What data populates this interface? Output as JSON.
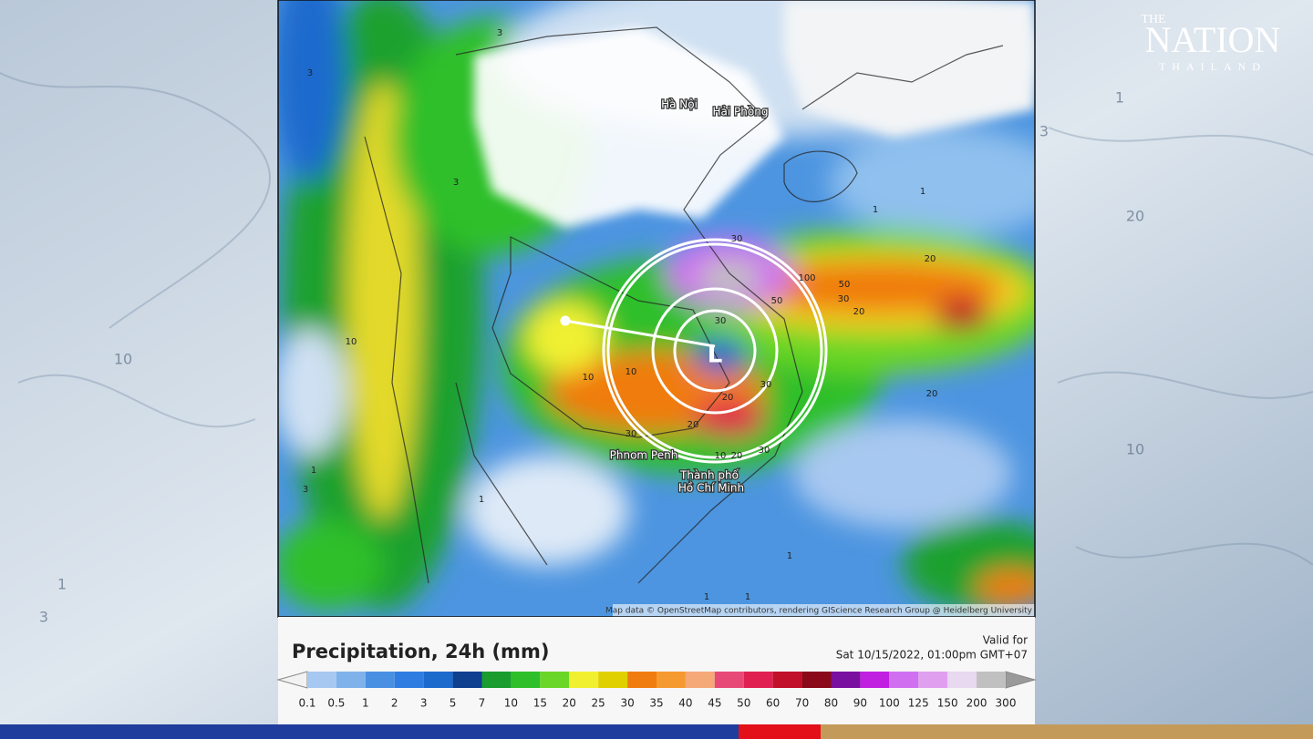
{
  "logo": {
    "top": "THE",
    "name": "NATION",
    "sub": "THAILAND"
  },
  "map": {
    "places": [
      "Hà Nội",
      "Hải Phòng",
      "Phnom Penh",
      "Thành phố",
      "Hồ Chí Minh"
    ],
    "low_marker": "L",
    "contour_labels": [
      "3",
      "3",
      "1",
      "1",
      "20",
      "30",
      "50",
      "30",
      "20",
      "100",
      "50",
      "30",
      "20",
      "10",
      "30",
      "30",
      "20",
      "20",
      "30",
      "20",
      "10",
      "10",
      "1",
      "1",
      "3",
      "1",
      "10",
      "1",
      "1",
      "3"
    ],
    "attribution": "Map data © OpenStreetMap contributors, rendering GIScience Research Group @ Heidelberg University"
  },
  "legend": {
    "title": "Precipitation, 24h (mm)",
    "valid_label": "Valid for",
    "valid_time": "Sat 10/15/2022, 01:00pm GMT+07",
    "labels": [
      "0.1",
      "0.5",
      "1",
      "2",
      "3",
      "5",
      "7",
      "10",
      "15",
      "20",
      "25",
      "30",
      "35",
      "40",
      "45",
      "50",
      "60",
      "70",
      "80",
      "90",
      "100",
      "125",
      "150",
      "200",
      "300"
    ],
    "colors": [
      "#a7c8f0",
      "#7fb2ea",
      "#4a90e2",
      "#2f7de0",
      "#1d6acd",
      "#0f3f8f",
      "#1a9c2e",
      "#2fbf2a",
      "#6ad628",
      "#f0f030",
      "#e0d000",
      "#f07c10",
      "#f59a30",
      "#f5a878",
      "#e84a78",
      "#e02050",
      "#c0102a",
      "#8a0a1a",
      "#7a10a0",
      "#c020e0",
      "#d070f0",
      "#e0a0f0",
      "#e8d8f0",
      "#c0c0c0"
    ]
  },
  "background_labels": [
    "1",
    "20",
    "10",
    "10",
    "1",
    "3",
    "3"
  ]
}
